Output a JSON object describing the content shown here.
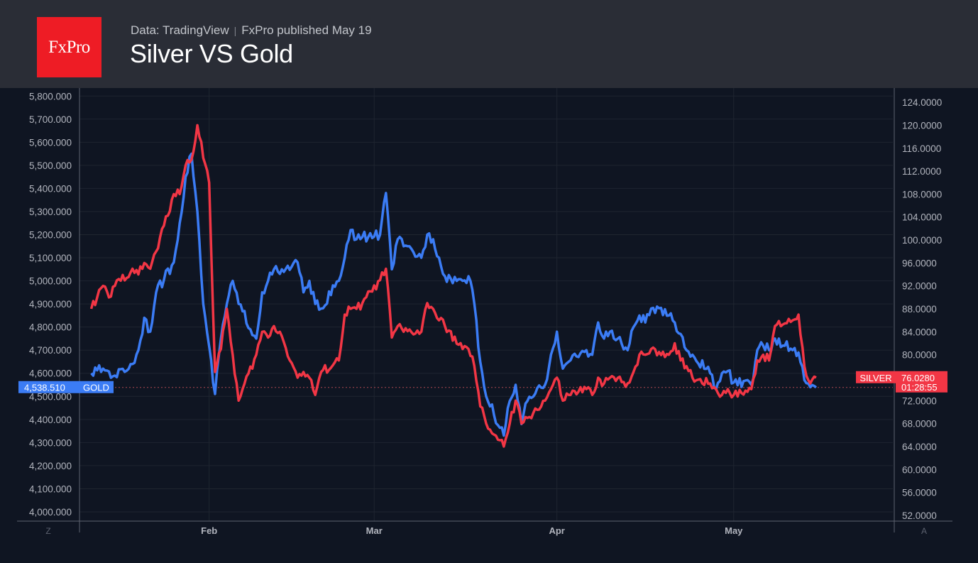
{
  "header": {
    "logo_text": "FxPro",
    "source": "Data: TradingView",
    "separator": "|",
    "published": "FxPro published May 19",
    "title": "Silver VS Gold"
  },
  "colors": {
    "gold_line": "#3b7cf5",
    "silver_line": "#f23645",
    "background": "#0f1522",
    "grid": "#1f2530",
    "axis_text": "#b2b5be"
  },
  "chart_data": {
    "type": "line",
    "title": "Silver VS Gold",
    "x_ticks": [
      "Feb",
      "Mar",
      "Apr",
      "May"
    ],
    "left_axis": {
      "ticks": [
        "5,800.000",
        "5,700.000",
        "5,600.000",
        "5,500.000",
        "5,400.000",
        "5,300.000",
        "5,200.000",
        "5,100.000",
        "5,000.000",
        "4,900.000",
        "4,800.000",
        "4,700.000",
        "4,600.000",
        "4,500.000",
        "4,400.000",
        "4,300.000",
        "4,200.000",
        "4,100.000",
        "4,000.000"
      ],
      "range": [
        3960,
        5810
      ]
    },
    "right_axis": {
      "ticks": [
        "124.0000",
        "120.0000",
        "116.0000",
        "112.0000",
        "108.0000",
        "104.0000",
        "100.0000",
        "96.0000",
        "92.0000",
        "88.0000",
        "84.0000",
        "80.0000",
        "76.0000",
        "72.0000",
        "68.0000",
        "64.0000",
        "60.0000",
        "56.0000",
        "52.0000"
      ],
      "range": [
        51,
        125.5
      ]
    },
    "series": [
      {
        "name": "GOLD",
        "axis": "left",
        "last_value": "4,538.510",
        "points": [
          [
            "Jan 12",
            4600
          ],
          [
            "Jan 14",
            4620
          ],
          [
            "Jan 16",
            4590
          ],
          [
            "Jan 19",
            4640
          ],
          [
            "Jan 20",
            4700
          ],
          [
            "Jan 21",
            4840
          ],
          [
            "Jan 22",
            4780
          ],
          [
            "Jan 23",
            4950
          ],
          [
            "Jan 26",
            5080
          ],
          [
            "Jan 27",
            5250
          ],
          [
            "Jan 28",
            5450
          ],
          [
            "Jan 29",
            5550
          ],
          [
            "Jan 30",
            5300
          ],
          [
            "Jan 31",
            4900
          ],
          [
            "Feb 2",
            4510
          ],
          [
            "Feb 3",
            4750
          ],
          [
            "Feb 4",
            4900
          ],
          [
            "Feb 5",
            5000
          ],
          [
            "Feb 6",
            4900
          ],
          [
            "Feb 9",
            4750
          ],
          [
            "Feb 10",
            4950
          ],
          [
            "Feb 11",
            5000
          ],
          [
            "Feb 12",
            5050
          ],
          [
            "Feb 13",
            5030
          ],
          [
            "Feb 16",
            5080
          ],
          [
            "Feb 17",
            4950
          ],
          [
            "Feb 18",
            5000
          ],
          [
            "Feb 19",
            4900
          ],
          [
            "Feb 20",
            4880
          ],
          [
            "Feb 23",
            5000
          ],
          [
            "Feb 24",
            5100
          ],
          [
            "Feb 25",
            5220
          ],
          [
            "Feb 26",
            5180
          ],
          [
            "Feb 27",
            5190
          ],
          [
            "Mar 2",
            5200
          ],
          [
            "Mar 3",
            5380
          ],
          [
            "Mar 4",
            5050
          ],
          [
            "Mar 5",
            5180
          ],
          [
            "Mar 6",
            5150
          ],
          [
            "Mar 9",
            5100
          ],
          [
            "Mar 10",
            5200
          ],
          [
            "Mar 11",
            5180
          ],
          [
            "Mar 12",
            5100
          ],
          [
            "Mar 13",
            5020
          ],
          [
            "Mar 16",
            5000
          ],
          [
            "Mar 17",
            5020
          ],
          [
            "Mar 18",
            4900
          ],
          [
            "Mar 19",
            4650
          ],
          [
            "Mar 20",
            4500
          ],
          [
            "Mar 23",
            4330
          ],
          [
            "Mar 24",
            4480
          ],
          [
            "Mar 25",
            4550
          ],
          [
            "Mar 26",
            4380
          ],
          [
            "Mar 27",
            4480
          ],
          [
            "Mar 30",
            4550
          ],
          [
            "Mar 31",
            4680
          ],
          [
            "Apr 1",
            4780
          ],
          [
            "Apr 2",
            4620
          ],
          [
            "Apr 3",
            4650
          ],
          [
            "Apr 6",
            4700
          ],
          [
            "Apr 7",
            4680
          ],
          [
            "Apr 8",
            4820
          ],
          [
            "Apr 9",
            4750
          ],
          [
            "Apr 10",
            4780
          ],
          [
            "Apr 13",
            4700
          ],
          [
            "Apr 14",
            4800
          ],
          [
            "Apr 15",
            4850
          ],
          [
            "Apr 16",
            4820
          ],
          [
            "Apr 17",
            4880
          ],
          [
            "Apr 20",
            4850
          ],
          [
            "Apr 21",
            4820
          ],
          [
            "Apr 22",
            4770
          ],
          [
            "Apr 23",
            4700
          ],
          [
            "Apr 24",
            4680
          ],
          [
            "Apr 27",
            4600
          ],
          [
            "Apr 28",
            4530
          ],
          [
            "Apr 29",
            4600
          ],
          [
            "Apr 30",
            4610
          ],
          [
            "May 1",
            4560
          ],
          [
            "May 4",
            4550
          ],
          [
            "May 5",
            4700
          ],
          [
            "May 6",
            4720
          ],
          [
            "May 7",
            4700
          ],
          [
            "May 8",
            4750
          ],
          [
            "May 11",
            4700
          ],
          [
            "May 12",
            4690
          ],
          [
            "May 13",
            4570
          ],
          [
            "May 14",
            4540
          ],
          [
            "May 15",
            4538.51
          ]
        ]
      },
      {
        "name": "SILVER",
        "axis": "right",
        "last_value": "76.0280",
        "countdown": "01:28:55",
        "points": [
          [
            "Jan 12",
            88
          ],
          [
            "Jan 13",
            90
          ],
          [
            "Jan 14",
            92
          ],
          [
            "Jan 15",
            90
          ],
          [
            "Jan 16",
            92
          ],
          [
            "Jan 19",
            95
          ],
          [
            "Jan 20",
            94
          ],
          [
            "Jan 21",
            96
          ],
          [
            "Jan 22",
            95
          ],
          [
            "Jan 23",
            98
          ],
          [
            "Jan 26",
            108
          ],
          [
            "Jan 27",
            108
          ],
          [
            "Jan 28",
            113
          ],
          [
            "Jan 29",
            114
          ],
          [
            "Jan 30",
            120
          ],
          [
            "Feb 1",
            110
          ],
          [
            "Feb 2",
            77
          ],
          [
            "Feb 3",
            81
          ],
          [
            "Feb 4",
            88
          ],
          [
            "Feb 5",
            80
          ],
          [
            "Feb 6",
            72
          ],
          [
            "Feb 9",
            80
          ],
          [
            "Feb 10",
            84
          ],
          [
            "Feb 11",
            83
          ],
          [
            "Feb 12",
            85
          ],
          [
            "Feb 13",
            84
          ],
          [
            "Feb 16",
            76
          ],
          [
            "Feb 17",
            77
          ],
          [
            "Feb 18",
            76
          ],
          [
            "Feb 19",
            73
          ],
          [
            "Feb 20",
            77
          ],
          [
            "Feb 23",
            79
          ],
          [
            "Feb 24",
            87
          ],
          [
            "Feb 25",
            88
          ],
          [
            "Feb 26",
            88
          ],
          [
            "Feb 27",
            89
          ],
          [
            "Mar 2",
            93
          ],
          [
            "Mar 3",
            95
          ],
          [
            "Mar 4",
            83
          ],
          [
            "Mar 5",
            85
          ],
          [
            "Mar 6",
            84
          ],
          [
            "Mar 9",
            84
          ],
          [
            "Mar 10",
            89
          ],
          [
            "Mar 11",
            88
          ],
          [
            "Mar 12",
            86
          ],
          [
            "Mar 13",
            85
          ],
          [
            "Mar 16",
            81
          ],
          [
            "Mar 17",
            81
          ],
          [
            "Mar 18",
            78
          ],
          [
            "Mar 19",
            71
          ],
          [
            "Mar 20",
            68
          ],
          [
            "Mar 23",
            64
          ],
          [
            "Mar 24",
            68
          ],
          [
            "Mar 25",
            72
          ],
          [
            "Mar 26",
            68
          ],
          [
            "Mar 27",
            69
          ],
          [
            "Mar 30",
            72
          ],
          [
            "Mar 31",
            74
          ],
          [
            "Apr 1",
            76
          ],
          [
            "Apr 2",
            72
          ],
          [
            "Apr 3",
            73
          ],
          [
            "Apr 6",
            74
          ],
          [
            "Apr 7",
            73
          ],
          [
            "Apr 8",
            76
          ],
          [
            "Apr 9",
            75
          ],
          [
            "Apr 10",
            76
          ],
          [
            "Apr 13",
            75
          ],
          [
            "Apr 14",
            77
          ],
          [
            "Apr 15",
            80
          ],
          [
            "Apr 16",
            80
          ],
          [
            "Apr 17",
            81
          ],
          [
            "Apr 20",
            80
          ],
          [
            "Apr 21",
            82
          ],
          [
            "Apr 22",
            79
          ],
          [
            "Apr 23",
            78
          ],
          [
            "Apr 24",
            76
          ],
          [
            "Apr 27",
            75
          ],
          [
            "Apr 28",
            74
          ],
          [
            "Apr 29",
            73
          ],
          [
            "Apr 30",
            74
          ],
          [
            "May 1",
            73
          ],
          [
            "May 4",
            74
          ],
          [
            "May 5",
            79
          ],
          [
            "May 6",
            80
          ],
          [
            "May 7",
            79
          ],
          [
            "May 8",
            85
          ],
          [
            "May 11",
            86
          ],
          [
            "May 12",
            87
          ],
          [
            "May 13",
            78
          ],
          [
            "May 14",
            75
          ],
          [
            "May 15",
            76.028
          ]
        ]
      }
    ],
    "axis_buttons": {
      "left": "Z",
      "right": "A"
    },
    "reference_line": "current gold price (dashed)",
    "grid": true
  }
}
